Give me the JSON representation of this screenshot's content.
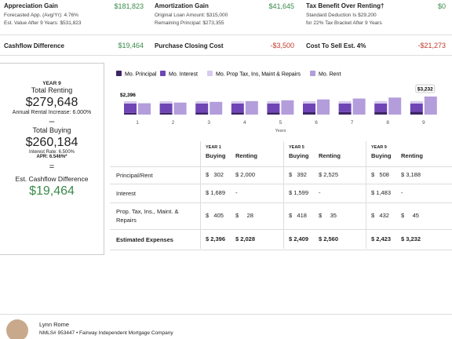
{
  "stats": [
    {
      "title": "Appreciation Gain",
      "value": "$181,823",
      "lines": [
        "Forecasted App. (Avg/Yr): 4.76%",
        "Est. Value After 9 Years: $531,823"
      ]
    },
    {
      "title": "Amortization Gain",
      "value": "$41,645",
      "lines": [
        "Original Loan Amount: $315,000",
        "Remaining Principal: $273,355"
      ]
    },
    {
      "title": "Tax Benefit Over Renting†",
      "value": "$0",
      "lines": [
        "Standard Deduction Is $29,200",
        "for 22% Tax Bracket After 9 Years"
      ]
    }
  ],
  "summary": [
    {
      "label": "Cashflow Difference",
      "value": "$19,464"
    },
    {
      "label": "Purchase Closing Cost",
      "value": "-$3,500"
    },
    {
      "label": "Cost To Sell Est. 4%",
      "value": "-$21,273"
    }
  ],
  "sidebar": {
    "year": "YEAR 9",
    "renting_label": "Total Renting",
    "renting_value": "$279,648",
    "rental_increase": "Annual Rental Increase: 6.000%",
    "minus": "–",
    "buying_label": "Total Buying",
    "buying_value": "$260,184",
    "interest_rate": "Interest Rate: 6.500%",
    "apr": "APR: 6.546%*",
    "equals": "=",
    "diff_label": "Est. Cashflow Difference",
    "diff_value": "$19,464"
  },
  "chart_data": {
    "type": "bar",
    "stacked": true,
    "x_label": "Years",
    "categories": [
      "1",
      "2",
      "3",
      "4",
      "5",
      "6",
      "7",
      "8",
      "9"
    ],
    "series": [
      {
        "name": "Mo. Principal",
        "color": "#3d2466",
        "stack": "buy",
        "values": [
          302,
          324,
          346,
          369,
          392,
          419,
          447,
          477,
          508
        ]
      },
      {
        "name": "Mo. Interest",
        "color": "#6f45b5",
        "stack": "buy",
        "values": [
          1689,
          1667,
          1645,
          1622,
          1599,
          1572,
          1544,
          1514,
          1483
        ]
      },
      {
        "name": "Mo. Prop Tax, Ins, Maint & Repairs",
        "color": "#d6cbec",
        "stack": "buy",
        "values": [
          405,
          408,
          412,
          415,
          418,
          421,
          425,
          428,
          432
        ]
      },
      {
        "name": "Mo. Rent",
        "color": "#b39ddb",
        "stack": "rent",
        "values": [
          2028,
          2150,
          2279,
          2416,
          2560,
          2714,
          2877,
          3049,
          3232
        ]
      }
    ],
    "annotations": [
      "$2,396",
      "$3,232"
    ],
    "ylim": [
      0,
      4500
    ]
  },
  "table": {
    "groups": [
      "YEAR 1",
      "YEAR 5",
      "YEAR 9"
    ],
    "subheaders": [
      "Buying",
      "Renting"
    ],
    "rows": [
      [
        "Principal/Rent",
        "$   302",
        "$ 2,000",
        "$   392",
        "$ 2,525",
        "$   508",
        "$ 3,188"
      ],
      [
        "Interest",
        "$ 1,689",
        "-",
        "$ 1,599",
        "-",
        "$ 1,483",
        "-"
      ],
      [
        "Prop. Tax, Ins., Maint. & Repairs",
        "$   405",
        "$     28",
        "$   418",
        "$     35",
        "$   432",
        "$     45"
      ],
      [
        "Estimated Expenses",
        "$ 2,396",
        "$ 2,028",
        "$ 2,409",
        "$ 2,560",
        "$ 2,423",
        "$ 3,232"
      ]
    ]
  },
  "footer": {
    "name": "Lynn Rome",
    "nmls": "NMLS# 953447 • Fairway Independent Mortgage Company"
  }
}
